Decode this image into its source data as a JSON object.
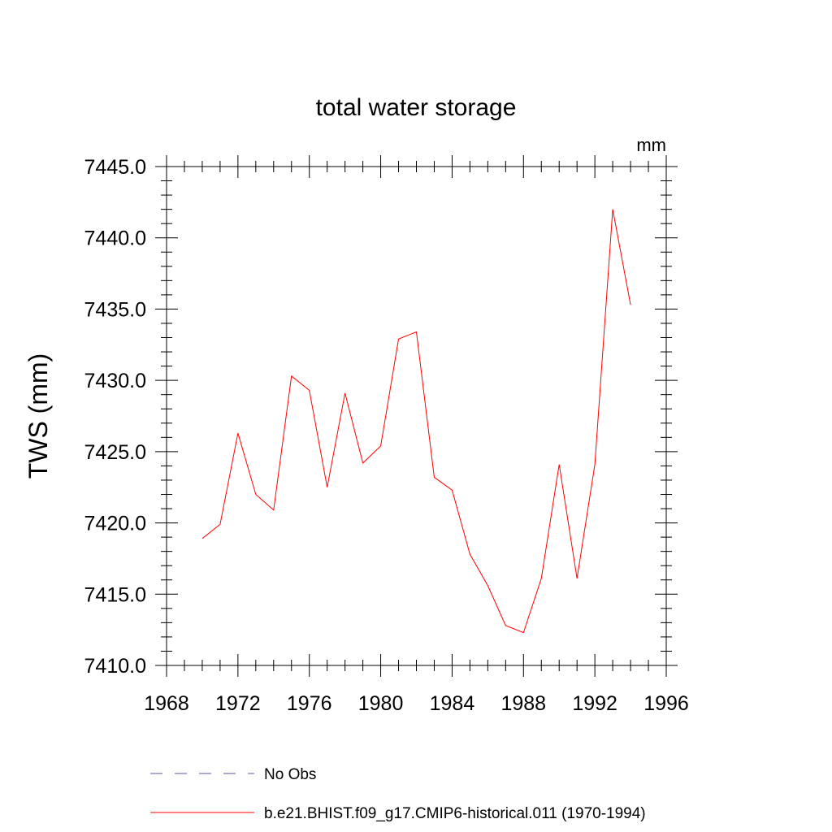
{
  "chart_data": {
    "type": "line",
    "title": "total water storage",
    "units_label": "mm",
    "xlabel": "",
    "ylabel": "TWS  (mm)",
    "xlim": [
      1968,
      1996
    ],
    "ylim": [
      7410.0,
      7445.0
    ],
    "xticks": [
      1968,
      1972,
      1976,
      1980,
      1984,
      1988,
      1992,
      1996
    ],
    "xtick_labels": [
      "1968",
      "1972",
      "1976",
      "1980",
      "1984",
      "1988",
      "1992",
      "1996"
    ],
    "yticks": [
      7410.0,
      7415.0,
      7420.0,
      7425.0,
      7430.0,
      7435.0,
      7440.0,
      7445.0
    ],
    "ytick_labels": [
      "7410.0",
      "7415.0",
      "7420.0",
      "7425.0",
      "7430.0",
      "7435.0",
      "7440.0",
      "7445.0"
    ],
    "grid": false,
    "legend_position": "bottom",
    "series": [
      {
        "name": "No Obs",
        "color": "#5a5aa0",
        "style": "dashed",
        "x": [],
        "y": []
      },
      {
        "name": "b.e21.BHIST.f09_g17.CMIP6-historical.011 (1970-1994)",
        "color": "#ff0000",
        "style": "solid",
        "x": [
          1970,
          1971,
          1972,
          1973,
          1974,
          1975,
          1976,
          1977,
          1978,
          1979,
          1980,
          1981,
          1982,
          1983,
          1984,
          1985,
          1986,
          1987,
          1988,
          1989,
          1990,
          1991,
          1992,
          1993,
          1994
        ],
        "y": [
          7418.9,
          7419.9,
          7426.3,
          7422.0,
          7420.9,
          7430.3,
          7429.3,
          7422.5,
          7429.1,
          7424.2,
          7425.4,
          7432.9,
          7433.4,
          7423.2,
          7422.3,
          7417.8,
          7415.6,
          7412.8,
          7412.3,
          7416.1,
          7424.1,
          7416.1,
          7424.1,
          7442.0,
          7435.3
        ]
      }
    ]
  }
}
